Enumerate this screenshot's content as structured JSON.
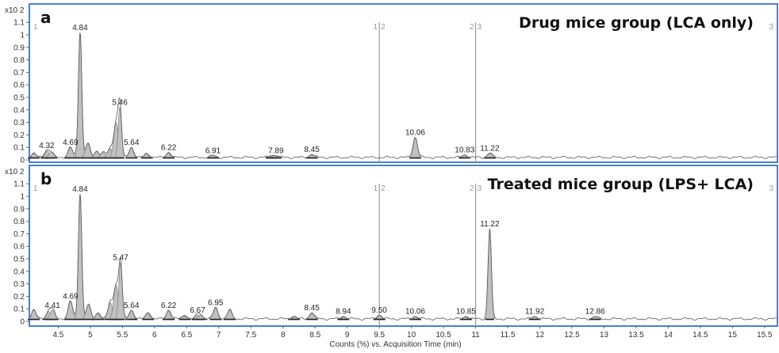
{
  "chart_data": [
    {
      "type": "line",
      "panel_letter": "a",
      "title": "Drug mice group (LCA only)",
      "y_multiplier": "x10 2",
      "xlabel": "Counts (%) vs. Acquisition Time (min)",
      "xlim": [
        4.05,
        15.7
      ],
      "ylim": [
        0,
        1.1
      ],
      "yticks": [
        "0",
        "0.1",
        "0.2",
        "0.3",
        "0.4",
        "0.5",
        "0.6",
        "0.7",
        "0.8",
        "0.9",
        "1",
        "1.1"
      ],
      "segment_markers": [
        {
          "x": 4.05,
          "label": "1"
        },
        {
          "x": 9.5,
          "label": "1"
        },
        {
          "x": 9.5,
          "label": "2"
        },
        {
          "x": 11.0,
          "label": "2"
        },
        {
          "x": 11.0,
          "label": "3"
        },
        {
          "x": 15.7,
          "label": "3"
        }
      ],
      "peaks": [
        {
          "rt": 4.12,
          "h": 0.03
        },
        {
          "rt": 4.32,
          "h": 0.055,
          "label": "4.32"
        },
        {
          "rt": 4.39,
          "h": 0.04
        },
        {
          "rt": 4.69,
          "h": 0.08,
          "label": "4.69"
        },
        {
          "rt": 4.84,
          "h": 1.0,
          "label": "4.84"
        },
        {
          "rt": 4.96,
          "h": 0.11
        },
        {
          "rt": 5.1,
          "h": 0.05
        },
        {
          "rt": 5.2,
          "h": 0.04
        },
        {
          "rt": 5.31,
          "h": 0.07
        },
        {
          "rt": 5.4,
          "h": 0.28
        },
        {
          "rt": 5.46,
          "h": 0.4,
          "label": "5.46"
        },
        {
          "rt": 5.64,
          "h": 0.08,
          "label": "5.64"
        },
        {
          "rt": 5.88,
          "h": 0.03
        },
        {
          "rt": 6.22,
          "h": 0.04,
          "label": "6.22"
        },
        {
          "rt": 6.91,
          "h": 0.015,
          "label": "6.91"
        },
        {
          "rt": 7.82,
          "h": 0.015
        },
        {
          "rt": 7.89,
          "h": 0.015,
          "label": "7.89"
        },
        {
          "rt": 8.45,
          "h": 0.025,
          "label": "8.45"
        },
        {
          "rt": 10.06,
          "h": 0.16,
          "label": "10.06"
        },
        {
          "rt": 10.83,
          "h": 0.02,
          "label": "10.83"
        },
        {
          "rt": 11.22,
          "h": 0.035,
          "label": "11.22"
        }
      ]
    },
    {
      "type": "line",
      "panel_letter": "b",
      "title": "Treated mice group (LPS+ LCA)",
      "y_multiplier": "x10 2",
      "xlabel": "Counts (%) vs. Acquisition Time (min)",
      "xlim": [
        4.05,
        15.7
      ],
      "ylim": [
        0,
        1.1
      ],
      "xticks": [
        "4.5",
        "5",
        "5.5",
        "6",
        "6.5",
        "7",
        "7.5",
        "8",
        "8.5",
        "9",
        "9.5",
        "10",
        "10.5",
        "11",
        "11.5",
        "12",
        "12.5",
        "13",
        "13.5",
        "14",
        "14.5",
        "15",
        "15.5"
      ],
      "yticks": [
        "0",
        "0.1",
        "0.2",
        "0.3",
        "0.4",
        "0.5",
        "0.6",
        "0.7",
        "0.8",
        "0.9",
        "1",
        "1.1"
      ],
      "segment_markers": [
        {
          "x": 4.05,
          "label": "1"
        },
        {
          "x": 9.5,
          "label": "1"
        },
        {
          "x": 9.5,
          "label": "2"
        },
        {
          "x": 11.0,
          "label": "2"
        },
        {
          "x": 11.0,
          "label": "3"
        },
        {
          "x": 15.7,
          "label": "3"
        }
      ],
      "peaks": [
        {
          "rt": 4.12,
          "h": 0.07
        },
        {
          "rt": 4.35,
          "h": 0.06
        },
        {
          "rt": 4.41,
          "h": 0.07,
          "label": "4.41"
        },
        {
          "rt": 4.69,
          "h": 0.14,
          "label": "4.69"
        },
        {
          "rt": 4.84,
          "h": 1.0,
          "label": "4.84"
        },
        {
          "rt": 4.97,
          "h": 0.11
        },
        {
          "rt": 5.12,
          "h": 0.05
        },
        {
          "rt": 5.31,
          "h": 0.13
        },
        {
          "rt": 5.4,
          "h": 0.27
        },
        {
          "rt": 5.47,
          "h": 0.45,
          "label": "5.47"
        },
        {
          "rt": 5.64,
          "h": 0.07,
          "label": "5.64"
        },
        {
          "rt": 5.9,
          "h": 0.05
        },
        {
          "rt": 6.22,
          "h": 0.07,
          "label": "6.22"
        },
        {
          "rt": 6.47,
          "h": 0.03
        },
        {
          "rt": 6.67,
          "h": 0.03,
          "label": "6.67"
        },
        {
          "rt": 6.72,
          "h": 0.03
        },
        {
          "rt": 6.95,
          "h": 0.09,
          "label": "6.95"
        },
        {
          "rt": 7.17,
          "h": 0.07
        },
        {
          "rt": 8.17,
          "h": 0.02
        },
        {
          "rt": 8.45,
          "h": 0.05,
          "label": "8.45"
        },
        {
          "rt": 8.94,
          "h": 0.02,
          "label": "8.94"
        },
        {
          "rt": 9.5,
          "h": 0.03,
          "label": "9.50"
        },
        {
          "rt": 10.06,
          "h": 0.02,
          "label": "10.06"
        },
        {
          "rt": 10.85,
          "h": 0.02,
          "label": "10.85"
        },
        {
          "rt": 11.22,
          "h": 0.72,
          "label": "11.22"
        },
        {
          "rt": 11.92,
          "h": 0.02,
          "label": "11.92"
        },
        {
          "rt": 12.86,
          "h": 0.02,
          "label": "12.86"
        }
      ]
    }
  ],
  "colors": {
    "frame": "#4a7fd4",
    "fill": "#c0c0c0",
    "line": "#555555",
    "divider": "#999999"
  }
}
